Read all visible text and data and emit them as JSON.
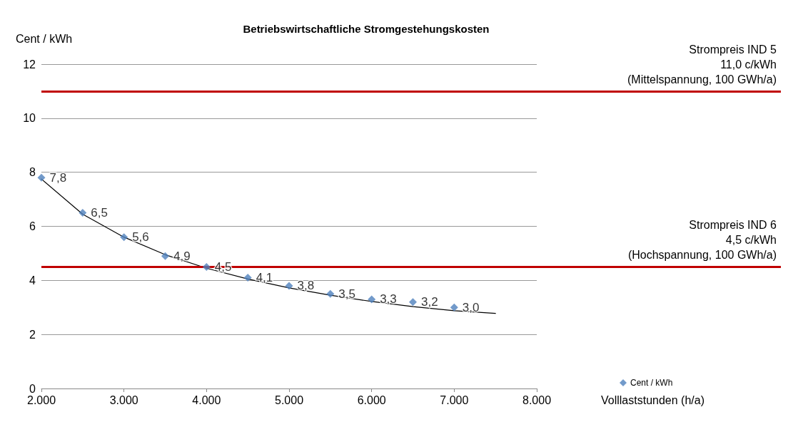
{
  "chart_data": {
    "type": "scatter",
    "title": "Betriebswirtschaftliche Stromgestehungskosten",
    "xlabel": "Volllaststunden (h/a)",
    "ylabel": "Cent / kWh",
    "x": [
      2000,
      2500,
      3000,
      3500,
      4000,
      4500,
      5000,
      5500,
      6000,
      6500,
      7000
    ],
    "series": [
      {
        "name": "Cent / kWh",
        "type": "scatter",
        "marker": "diamond",
        "color": "#4f81bd",
        "values": [
          7.8,
          6.5,
          5.6,
          4.9,
          4.5,
          4.1,
          3.8,
          3.5,
          3.3,
          3.2,
          3.0
        ],
        "value_labels": [
          "7,8",
          "6,5",
          "5,6",
          "4,9",
          "4,5",
          "4,1",
          "3,8",
          "3,5",
          "3,3",
          "3,2",
          "3,0"
        ]
      },
      {
        "type": "line",
        "color": "#000000",
        "x": [
          2000,
          2500,
          3000,
          3500,
          4000,
          4500,
          5000,
          5500,
          6000,
          6500,
          7000,
          7500
        ],
        "values": [
          7.75,
          6.45,
          5.6,
          4.95,
          4.45,
          4.05,
          3.72,
          3.45,
          3.22,
          3.03,
          2.88,
          2.78
        ]
      }
    ],
    "xlim": [
      2000,
      8000
    ],
    "xticks": [
      {
        "value": 2000,
        "label": "2.000"
      },
      {
        "value": 3000,
        "label": "3.000"
      },
      {
        "value": 4000,
        "label": "4.000"
      },
      {
        "value": 5000,
        "label": "5.000"
      },
      {
        "value": 6000,
        "label": "6.000"
      },
      {
        "value": 7000,
        "label": "7.000"
      },
      {
        "value": 8000,
        "label": "8.000"
      }
    ],
    "ylim": [
      0,
      12
    ],
    "yticks": [
      0,
      2,
      4,
      6,
      8,
      10,
      12
    ],
    "ref_lines": [
      {
        "axis": "y",
        "value": 11.0,
        "label": "Strompreis IND 5\n11,0 c/kWh\n(Mittelspannung, 100 GWh/a)",
        "color": "#c00000"
      },
      {
        "axis": "y",
        "value": 4.5,
        "label": "Strompreis IND 6\n4,5 c/kWh\n(Hochspannung, 100 GWh/a)",
        "color": "#c00000"
      }
    ],
    "grid": "y",
    "legend": "bottom right",
    "line_style": "solid"
  }
}
